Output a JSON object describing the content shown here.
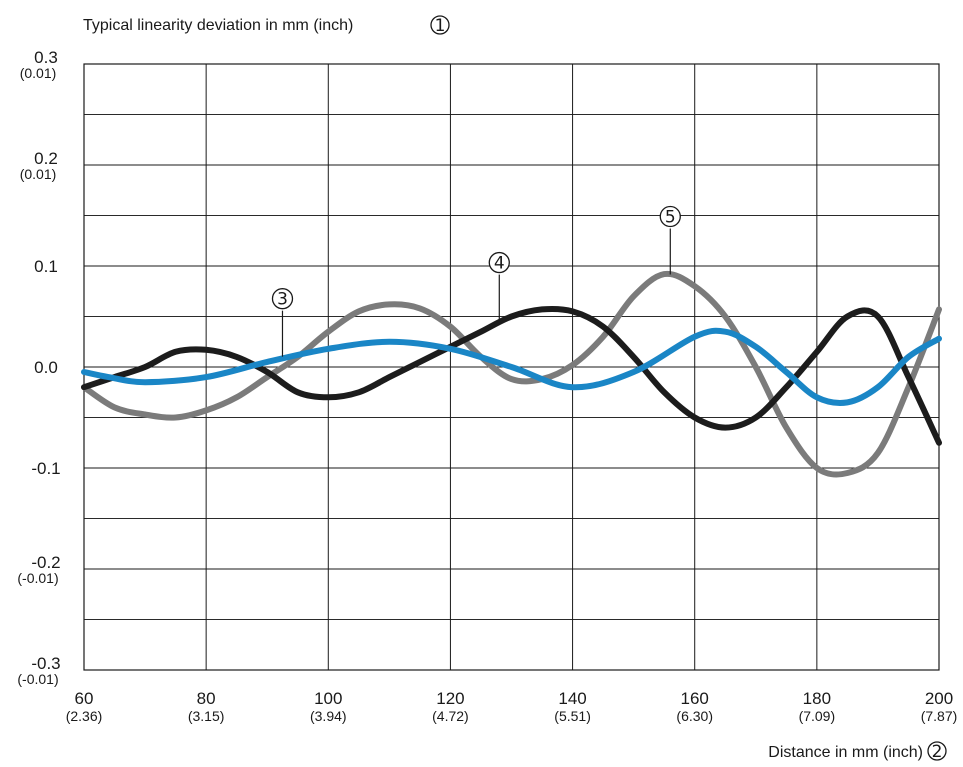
{
  "chart_data": {
    "type": "line",
    "title": "Typical linearity deviation in mm (inch)",
    "title_marker": "1",
    "xlabel": "Distance in mm (inch)",
    "xlabel_marker": "2",
    "xlim": [
      60,
      200
    ],
    "ylim": [
      -0.3,
      0.3
    ],
    "grid": true,
    "x_ticks": [
      {
        "value": 60,
        "label": "60",
        "sub": "(2.36)"
      },
      {
        "value": 80,
        "label": "80",
        "sub": "(3.15)"
      },
      {
        "value": 100,
        "label": "100",
        "sub": "(3.94)"
      },
      {
        "value": 120,
        "label": "120",
        "sub": "(4.72)"
      },
      {
        "value": 140,
        "label": "140",
        "sub": "(5.51)"
      },
      {
        "value": 160,
        "label": "160",
        "sub": "(6.30)"
      },
      {
        "value": 180,
        "label": "180",
        "sub": "(7.09)"
      },
      {
        "value": 200,
        "label": "200",
        "sub": "(7.87)"
      }
    ],
    "y_ticks": [
      {
        "value": 0.3,
        "label": "0.3",
        "sub": "(0.01)"
      },
      {
        "value": 0.2,
        "label": "0.2",
        "sub": "(0.01)"
      },
      {
        "value": 0.1,
        "label": "0.1",
        "sub": ""
      },
      {
        "value": 0.0,
        "label": "0.0",
        "sub": ""
      },
      {
        "value": -0.1,
        "label": "-0.1",
        "sub": ""
      },
      {
        "value": -0.2,
        "label": "-0.2",
        "sub": "(-0.01)"
      },
      {
        "value": -0.3,
        "label": "-0.3",
        "sub": "(-0.01)"
      }
    ],
    "y_minor_grid": [
      0.25,
      0.15,
      0.05,
      -0.05,
      -0.15,
      -0.25
    ],
    "series": [
      {
        "marker": "3",
        "color": "#1a86c6",
        "x": [
          60,
          64,
          70,
          80,
          90,
          100,
          110,
          120,
          130,
          140,
          150,
          160,
          165,
          170,
          175,
          180,
          185,
          190,
          195,
          200
        ],
        "y": [
          -0.005,
          -0.01,
          -0.015,
          -0.01,
          0.005,
          0.018,
          0.025,
          0.018,
          0.0,
          -0.02,
          -0.005,
          0.03,
          0.035,
          0.02,
          -0.005,
          -0.03,
          -0.035,
          -0.02,
          0.01,
          0.028
        ]
      },
      {
        "marker": "4",
        "color": "#1c1c1c",
        "x": [
          60,
          65,
          70,
          75,
          80,
          85,
          90,
          95,
          100,
          105,
          110,
          115,
          120,
          125,
          130,
          135,
          140,
          145,
          150,
          155,
          160,
          165,
          170,
          175,
          180,
          185,
          190,
          195,
          200
        ],
        "y": [
          -0.02,
          -0.01,
          0.0,
          0.015,
          0.017,
          0.01,
          -0.005,
          -0.025,
          -0.03,
          -0.025,
          -0.01,
          0.005,
          0.02,
          0.035,
          0.05,
          0.057,
          0.055,
          0.04,
          0.01,
          -0.025,
          -0.05,
          -0.06,
          -0.05,
          -0.02,
          0.015,
          0.05,
          0.05,
          -0.01,
          -0.075
        ]
      },
      {
        "marker": "5",
        "color": "#7b7b7b",
        "x": [
          60,
          65,
          70,
          75,
          80,
          85,
          90,
          95,
          100,
          105,
          110,
          115,
          120,
          125,
          130,
          135,
          140,
          145,
          150,
          155,
          160,
          165,
          170,
          175,
          180,
          185,
          190,
          195,
          200
        ],
        "y": [
          -0.02,
          -0.04,
          -0.047,
          -0.05,
          -0.043,
          -0.03,
          -0.01,
          0.01,
          0.035,
          0.055,
          0.062,
          0.058,
          0.04,
          0.01,
          -0.012,
          -0.012,
          0.002,
          0.03,
          0.07,
          0.092,
          0.08,
          0.05,
          0.0,
          -0.06,
          -0.1,
          -0.105,
          -0.085,
          -0.02,
          0.057
        ]
      }
    ],
    "annotations": [
      {
        "marker": "3",
        "series_index": 0,
        "anchor_x": 92.5
      },
      {
        "marker": "4",
        "series_index": 1,
        "anchor_x": 128
      },
      {
        "marker": "5",
        "series_index": 2,
        "anchor_x": 156
      }
    ]
  }
}
